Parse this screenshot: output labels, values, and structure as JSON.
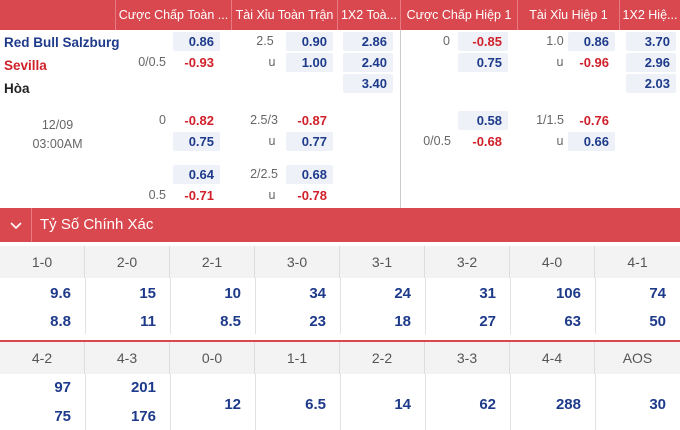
{
  "header": {
    "columns": [
      "Cược Chấp Toàn ...",
      "Tài Xỉu Toàn Trận",
      "1X2 Toà...",
      "Cược Chấp Hiệp 1",
      "Tài Xỉu Hiệp 1",
      "1X2 Hiệ..."
    ]
  },
  "match": {
    "home": "Red Bull Salzburg",
    "away": "Sevilla",
    "draw": "Hòa",
    "date": "12/09",
    "time": "03:00AM"
  },
  "odds": {
    "r1": {
      "ft_hcp_top": "0.86",
      "ft_ou_line": "2.5",
      "ft_ou_top": "0.90",
      "ft_1x2_home": "2.86",
      "h1_hcp_line": "0",
      "h1_hcp_top": "-0.85",
      "h1_ou_line": "1.0",
      "h1_ou_top": "0.86",
      "h1_1x2_home": "3.70"
    },
    "r2": {
      "ft_hcp_line": "0/0.5",
      "ft_hcp_bot": "-0.93",
      "ft_ou_u": "u",
      "ft_ou_bot": "1.00",
      "ft_1x2_away": "2.40",
      "h1_hcp_bot": "0.75",
      "h1_ou_u": "u",
      "h1_ou_bot": "-0.96",
      "h1_1x2_away": "2.96"
    },
    "r3": {
      "ft_1x2_draw": "3.40",
      "h1_1x2_draw": "2.03"
    },
    "r4": {
      "ft_hcp_line": "0",
      "ft_hcp_top": "-0.82",
      "ft_ou_line": "2.5/3",
      "ft_ou_top": "-0.87",
      "h1_hcp_top": "0.58",
      "h1_ou_line": "1/1.5",
      "h1_ou_top": "-0.76"
    },
    "r5": {
      "ft_hcp_bot": "0.75",
      "ft_ou_u": "u",
      "ft_ou_bot": "0.77",
      "h1_hcp_line": "0/0.5",
      "h1_hcp_bot": "-0.68",
      "h1_ou_u": "u",
      "h1_ou_bot": "0.66"
    },
    "r6": {
      "ft_hcp_top": "0.64",
      "ft_ou_line": "2/2.5",
      "ft_ou_top": "0.68"
    },
    "r7": {
      "ft_hcp_line": "0.5",
      "ft_hcp_bot": "-0.71",
      "ft_ou_u": "u",
      "ft_ou_bot": "-0.78"
    }
  },
  "exact_score": {
    "title": "Tỷ Số Chính Xác",
    "row1": [
      {
        "score": "1-0",
        "a": "9.6",
        "b": "8.8"
      },
      {
        "score": "2-0",
        "a": "15",
        "b": "11"
      },
      {
        "score": "2-1",
        "a": "10",
        "b": "8.5"
      },
      {
        "score": "3-0",
        "a": "34",
        "b": "23"
      },
      {
        "score": "3-1",
        "a": "24",
        "b": "18"
      },
      {
        "score": "3-2",
        "a": "31",
        "b": "27"
      },
      {
        "score": "4-0",
        "a": "106",
        "b": "63"
      },
      {
        "score": "4-1",
        "a": "74",
        "b": "50"
      }
    ],
    "row2": [
      {
        "score": "4-2",
        "a": "97",
        "b": "75"
      },
      {
        "score": "4-3",
        "a": "201",
        "b": "176"
      },
      {
        "score": "0-0",
        "a": "12"
      },
      {
        "score": "1-1",
        "a": "6.5"
      },
      {
        "score": "2-2",
        "a": "14"
      },
      {
        "score": "3-3",
        "a": "62"
      },
      {
        "score": "4-4",
        "a": "288"
      },
      {
        "score": "AOS",
        "a": "30"
      }
    ]
  }
}
